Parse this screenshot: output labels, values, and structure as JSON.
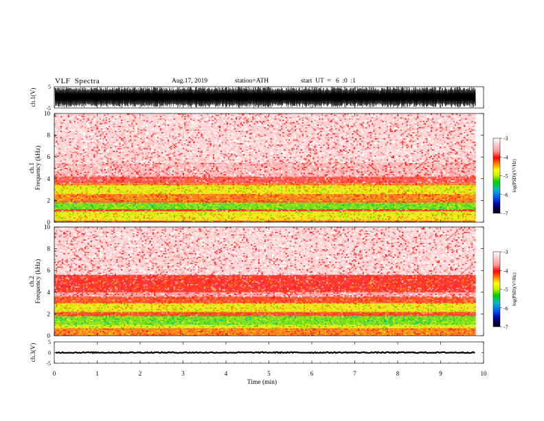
{
  "header": {
    "title": "VLF  Spectra",
    "date": "Aug.17, 2019",
    "station": "station=ATH",
    "start": "start  UT  =   6  :0  :1"
  },
  "colors": {
    "waveform": "#000000",
    "colormap": [
      "#000000",
      "#0000a0",
      "#0060ff",
      "#00d000",
      "#c8f000",
      "#ffff00",
      "#ff8000",
      "#ff0000",
      "#ffd0d0",
      "#ffffff"
    ]
  },
  "chart_data": [
    {
      "type": "line",
      "panel": "ch1",
      "ylabel": "ch.1(V)",
      "ylim": [
        -5,
        5
      ],
      "yticks": [
        "5",
        "-5"
      ],
      "description_values": {
        "amplitude_range": [
          -5,
          5
        ]
      }
    },
    {
      "type": "heatmap",
      "panel": "ch1-spectrum",
      "ylabel": "ch.1\nFrequency  (kHz)",
      "ylim": [
        0,
        10
      ],
      "yticks": [
        "0",
        "2",
        "4",
        "6",
        "8",
        "10"
      ],
      "colorbar": {
        "label": "log(PSD)(V²/Hz)",
        "range": [
          -7,
          -3
        ],
        "ticks": [
          "-3",
          "-4",
          "-5",
          "-6",
          "-7"
        ]
      },
      "bands_khz": [
        {
          "from": 0.0,
          "to": 0.15,
          "level": -3.6
        },
        {
          "from": 0.15,
          "to": 1.0,
          "level": -4.3
        },
        {
          "from": 1.0,
          "to": 1.2,
          "level": -3.6
        },
        {
          "from": 1.2,
          "to": 1.8,
          "level": -4.7
        },
        {
          "from": 1.8,
          "to": 2.0,
          "level": -3.8
        },
        {
          "from": 2.0,
          "to": 2.6,
          "level": -3.9
        },
        {
          "from": 2.6,
          "to": 3.4,
          "level": -4.3
        },
        {
          "from": 3.4,
          "to": 3.6,
          "level": -3.9
        },
        {
          "from": 3.6,
          "to": 4.2,
          "level": -3.5
        },
        {
          "from": 4.2,
          "to": 5.5,
          "level": -3.25
        },
        {
          "from": 5.5,
          "to": 10.0,
          "level": -3.15
        }
      ]
    },
    {
      "type": "heatmap",
      "panel": "ch2-spectrum",
      "ylabel": "ch.2\nFrequency  (kHz)",
      "ylim": [
        0,
        10
      ],
      "yticks": [
        "0",
        "2",
        "4",
        "6",
        "8",
        "10"
      ],
      "colorbar": {
        "label": "log(PSD)(V²/Hz)",
        "range": [
          -7,
          -3
        ],
        "ticks": [
          "-3",
          "-4",
          "-5",
          "-6",
          "-7"
        ]
      },
      "bands_khz": [
        {
          "from": 0.0,
          "to": 0.7,
          "level": -3.9
        },
        {
          "from": 0.7,
          "to": 1.0,
          "level": -4.4
        },
        {
          "from": 1.0,
          "to": 1.8,
          "level": -4.7
        },
        {
          "from": 1.8,
          "to": 2.2,
          "level": -3.7
        },
        {
          "from": 2.2,
          "to": 3.0,
          "level": -4.3
        },
        {
          "from": 3.0,
          "to": 3.6,
          "level": -3.7
        },
        {
          "from": 3.6,
          "to": 4.0,
          "level": -3.3
        },
        {
          "from": 4.0,
          "to": 5.6,
          "level": -3.6
        },
        {
          "from": 5.6,
          "to": 10.0,
          "level": -3.15
        }
      ]
    },
    {
      "type": "line",
      "panel": "ch3",
      "ylabel": "ch.3(V)",
      "ylim": [
        -5,
        5
      ],
      "yticks": [
        "5",
        "0",
        "-5"
      ],
      "level_v": 0,
      "xlabel": "Time  (min)",
      "xlim": [
        0,
        10
      ],
      "xticks": [
        "0",
        "1",
        "2",
        "3",
        "4",
        "5",
        "6",
        "7",
        "8",
        "9",
        "10"
      ],
      "data_end_min": 9.82
    }
  ]
}
